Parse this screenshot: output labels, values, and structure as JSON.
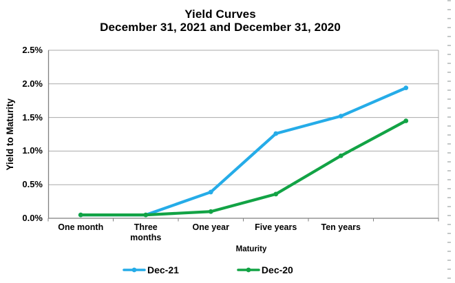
{
  "title": {
    "line1": "Yield Curves",
    "line2": "December 31, 2021 and December 31, 2020"
  },
  "chart_data": {
    "type": "line",
    "categories": [
      "One month",
      "Three months",
      "One year",
      "Five years",
      "Ten years",
      ""
    ],
    "series": [
      {
        "name": "Dec-21",
        "color": "#25ACE8",
        "values": [
          0.05,
          0.05,
          0.39,
          1.26,
          1.52,
          1.94
        ]
      },
      {
        "name": "Dec-20",
        "color": "#12A345",
        "values": [
          0.05,
          0.05,
          0.1,
          0.36,
          0.93,
          1.45
        ]
      }
    ],
    "xlabel": "Maturity",
    "ylabel": "Yield to Maturity",
    "ylim": [
      0,
      2.5
    ],
    "y_tick_step": 0.5,
    "y_tick_labels": [
      "0.0%",
      "0.5%",
      "1.0%",
      "1.5%",
      "2.0%",
      "2.5%"
    ],
    "grid": "horizontal-only",
    "legend_position": "bottom",
    "marker": "circle"
  },
  "colors": {
    "gridline": "#A9A9A9",
    "axis": "#7F7F7F",
    "text": "#000000"
  }
}
